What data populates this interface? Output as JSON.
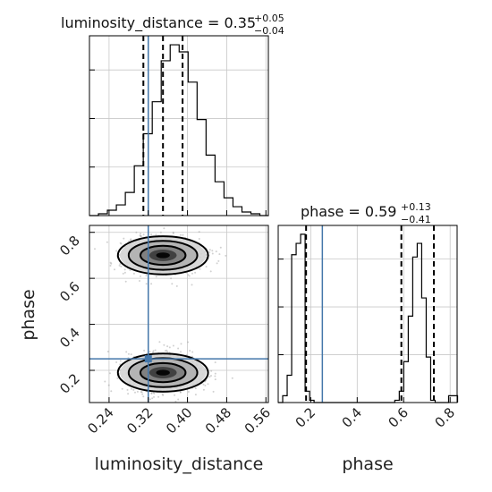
{
  "chart_data": {
    "type": "corner",
    "truth_color": "#4477aa",
    "grid": true,
    "params": [
      {
        "name": "luminosity_distance",
        "title_prefix": "luminosity_distance = 0.35",
        "title_plus": "+0.05",
        "title_minus": "−0.04",
        "range": [
          0.2,
          0.565
        ],
        "ticks": [
          0.24,
          0.32,
          0.4,
          0.48,
          0.56
        ],
        "tick_labels": [
          "0.24",
          "0.32",
          "0.40",
          "0.48",
          "0.56"
        ],
        "quantiles": [
          0.31,
          0.35,
          0.39
        ],
        "truth": 0.32,
        "hist_edges_start": 0.2,
        "hist_bin_width": 0.0183,
        "hist_counts": [
          0,
          1,
          3,
          6,
          13,
          28,
          46,
          64,
          87,
          96,
          92,
          75,
          54,
          34,
          19,
          10,
          5,
          2,
          1,
          0
        ]
      },
      {
        "name": "phase",
        "title_prefix": "phase = 0.59",
        "title_plus": "+0.13",
        "title_minus": "−0.41",
        "range": [
          0.06,
          0.83
        ],
        "ticks": [
          0.2,
          0.4,
          0.6,
          0.8
        ],
        "tick_labels": [
          "0.2",
          "0.4",
          "0.6",
          "0.8"
        ],
        "quantiles": [
          0.18,
          0.59,
          0.73
        ],
        "truth": 0.25,
        "hist_edges_start": 0.06,
        "hist_bin_width": 0.0193,
        "hist_counts": [
          0,
          3,
          12,
          65,
          70,
          74,
          5,
          1,
          0,
          0,
          0,
          0,
          0,
          0,
          0,
          0,
          0,
          0,
          0,
          0,
          0,
          0,
          0,
          0,
          0,
          0,
          1,
          5,
          18,
          38,
          64,
          70,
          46,
          20,
          1,
          0,
          0,
          0,
          3,
          3
        ]
      }
    ],
    "joint": {
      "x_param": "luminosity_distance",
      "y_param": "phase",
      "modes": [
        {
          "x": 0.35,
          "y": 0.7,
          "sx": 0.04,
          "sy": 0.04
        },
        {
          "x": 0.35,
          "y": 0.19,
          "sx": 0.04,
          "sy": 0.04
        }
      ]
    }
  },
  "labels": {
    "xlabel_left": "luminosity_distance",
    "xlabel_right": "phase",
    "ylabel": "phase"
  }
}
